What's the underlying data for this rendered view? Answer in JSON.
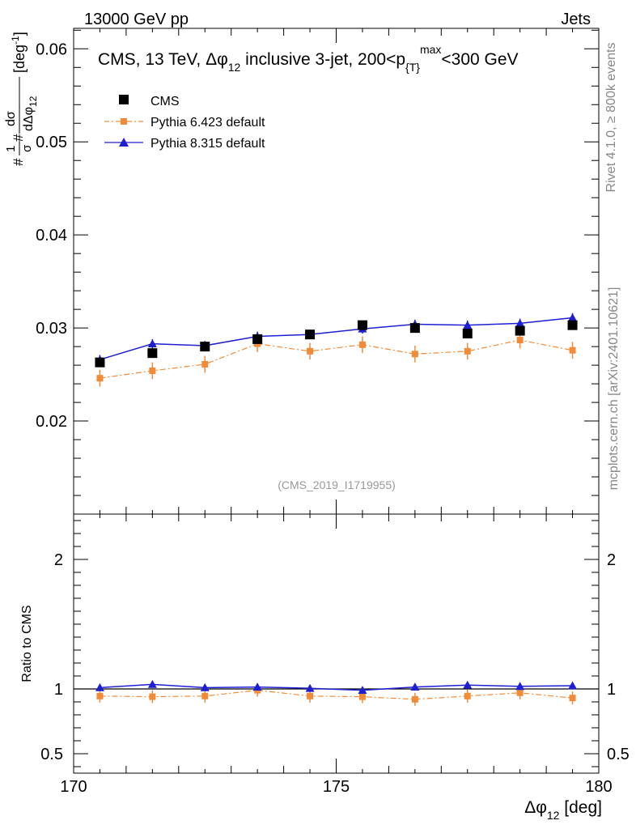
{
  "header": {
    "energy_label": "13000 GeV pp",
    "process_label": "Jets"
  },
  "side": {
    "rivet_label": "Rivet 4.1.0, ≥ 800k events",
    "mcplots_label": "mcplots.cern.ch [arXiv:2401.10621]"
  },
  "colors": {
    "cms": "#000000",
    "pythia6": "#f28b38",
    "pythia8": "#1e1ed2",
    "watermark": "#999999"
  },
  "chart_data": {
    "type": "line",
    "title_parts": [
      "CMS, 13 TeV, ",
      "Δφ",
      "12",
      " inclusive 3-jet, 200<p",
      "{T}",
      "max",
      "<300 GeV"
    ],
    "watermark": "(CMS_2019_I1719955)",
    "ylabel_parts": [
      "#",
      "1",
      "σ",
      "#",
      "dσ",
      "dΔφ",
      "12",
      "[deg",
      "-1",
      "]"
    ],
    "xlabel_parts": [
      "Δφ",
      "12",
      " [deg]"
    ],
    "ratio_ylabel": "Ratio to CMS",
    "xlim": [
      170,
      180
    ],
    "ylim": [
      0.01,
      0.0622
    ],
    "ratio_ylim": [
      0.35,
      2.35
    ],
    "x_ticks": [
      "170",
      "175",
      "180"
    ],
    "y_ticks": [
      "0.02",
      "0.03",
      "0.04",
      "0.05",
      "0.06"
    ],
    "ratio_ticks": [
      "0.5",
      "1",
      "2"
    ],
    "x": [
      170.5,
      171.5,
      172.5,
      173.5,
      174.5,
      175.5,
      176.5,
      177.5,
      178.5,
      179.5
    ],
    "series": [
      {
        "name": "CMS",
        "marker": "square",
        "values": [
          0.0263,
          0.0273,
          0.028,
          0.0288,
          0.0293,
          0.0303,
          0.03,
          0.0294,
          0.0297,
          0.0303
        ]
      },
      {
        "name": "Pythia 6.423 default",
        "marker": "small-square",
        "line": "dash-dot",
        "values": [
          0.0246,
          0.0254,
          0.0261,
          0.0283,
          0.0275,
          0.0282,
          0.0272,
          0.0275,
          0.0287,
          0.0276
        ],
        "errors": [
          0.0009,
          0.0009,
          0.0009,
          0.0009,
          0.0009,
          0.0009,
          0.0009,
          0.0009,
          0.0009,
          0.0009
        ],
        "ratio": [
          0.945,
          0.94,
          0.945,
          0.99,
          0.945,
          0.94,
          0.92,
          0.945,
          0.97,
          0.93
        ]
      },
      {
        "name": "Pythia 8.315 default",
        "marker": "triangle",
        "line": "solid",
        "values": [
          0.0266,
          0.0283,
          0.0281,
          0.0291,
          0.0293,
          0.0299,
          0.0304,
          0.0303,
          0.0305,
          0.0311
        ],
        "errors": [
          0.0005,
          0.0005,
          0.0005,
          0.0005,
          0.0005,
          0.0005,
          0.0005,
          0.0005,
          0.0005,
          0.0005
        ],
        "ratio": [
          1.01,
          1.035,
          1.01,
          1.015,
          1.005,
          0.99,
          1.015,
          1.03,
          1.02,
          1.025
        ]
      }
    ]
  }
}
